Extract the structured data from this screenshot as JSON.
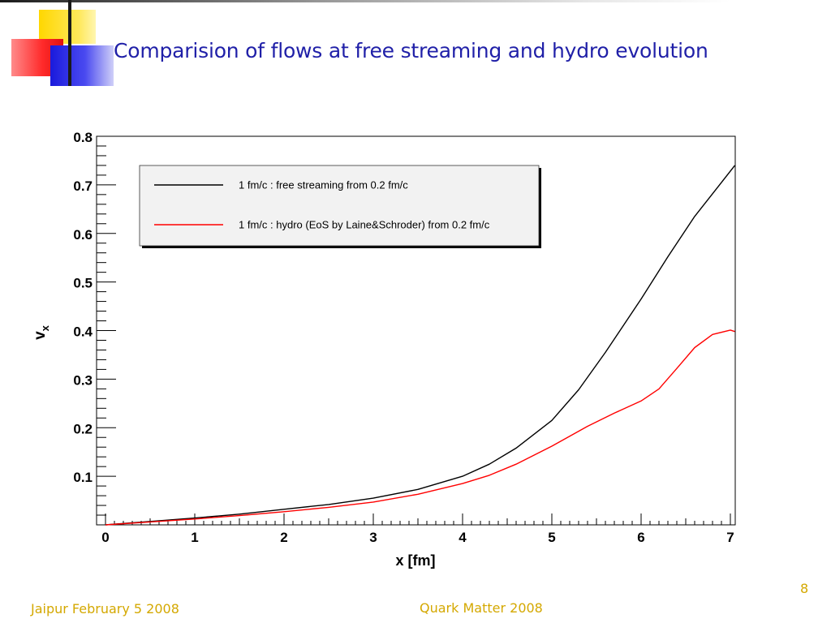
{
  "slide": {
    "title": "Comparision of flows at free streaming and hydro evolution",
    "footer_left": "Jaipur February 5 2008",
    "footer_center": "Quark Matter 2008",
    "page_number": "8"
  },
  "colors": {
    "title": "#2020a8",
    "footer": "#d4a800",
    "free_streaming": "#000000",
    "hydro": "#ff0000"
  },
  "chart_data": {
    "type": "line",
    "xlabel": "x [fm]",
    "ylabel": "v_x",
    "xlim": [
      0,
      7.05
    ],
    "ylim": [
      0,
      0.8
    ],
    "x_ticks": [
      "0",
      "1",
      "2",
      "3",
      "4",
      "5",
      "6",
      "7"
    ],
    "y_ticks": [
      "0.1",
      "0.2",
      "0.3",
      "0.4",
      "0.5",
      "0.6",
      "0.7",
      "0.8"
    ],
    "legend_position": "top-left",
    "grid": false,
    "series": [
      {
        "name": "1 fm/c : free streaming from 0.2 fm/c",
        "color": "#000000",
        "x": [
          0,
          0.5,
          1,
          1.5,
          2,
          2.5,
          3,
          3.5,
          4,
          4.3,
          4.6,
          5,
          5.3,
          5.6,
          6,
          6.3,
          6.6,
          6.9,
          7.05
        ],
        "y": [
          0,
          0.007,
          0.014,
          0.022,
          0.032,
          0.042,
          0.055,
          0.073,
          0.1,
          0.125,
          0.158,
          0.215,
          0.278,
          0.355,
          0.465,
          0.552,
          0.635,
          0.705,
          0.74
        ]
      },
      {
        "name": "1 fm/c : hydro (EoS by Laine&Schroder) from 0.2 fm/c",
        "color": "#ff0000",
        "x": [
          0,
          0.5,
          1,
          1.5,
          2,
          2.5,
          3,
          3.5,
          4,
          4.3,
          4.6,
          5,
          5.4,
          5.7,
          6,
          6.2,
          6.4,
          6.6,
          6.8,
          7,
          7.05
        ],
        "y": [
          0,
          0.006,
          0.012,
          0.019,
          0.027,
          0.036,
          0.047,
          0.063,
          0.085,
          0.102,
          0.125,
          0.162,
          0.203,
          0.23,
          0.255,
          0.28,
          0.322,
          0.365,
          0.392,
          0.401,
          0.398
        ]
      }
    ]
  }
}
